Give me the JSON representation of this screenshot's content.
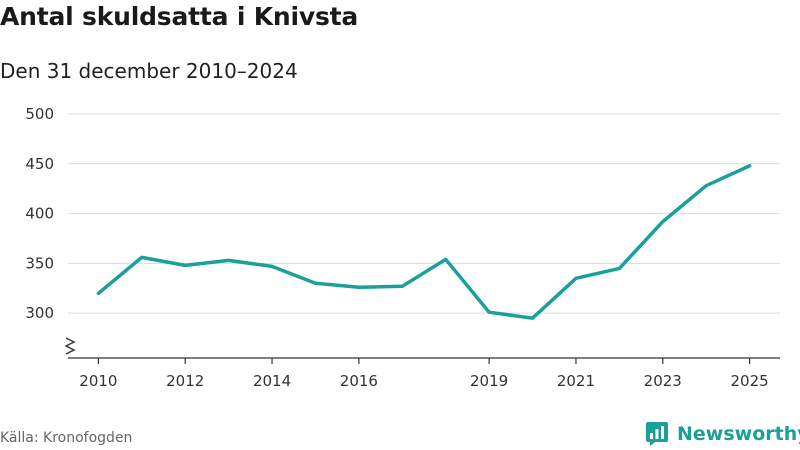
{
  "header": {
    "title": "Antal skuldsatta i Knivsta",
    "subtitle": "Den 31 december 2010–2024"
  },
  "footer": {
    "source": "Källa: Kronofogden",
    "brand": "Newsworthy"
  },
  "colors": {
    "line": "#1aa098",
    "grid": "#d9d9d9",
    "axis": "#333333",
    "brand": "#1aa098"
  },
  "icons": {
    "axis_break": "zigzag-axis-break-icon",
    "brand_logo": "newsworthy-logo-icon"
  },
  "chart_data": {
    "type": "line",
    "title": "Antal skuldsatta i Knivsta",
    "subtitle": "Den 31 december 2010–2024",
    "xlabel": "",
    "ylabel": "",
    "x": [
      2010,
      2011,
      2012,
      2013,
      2014,
      2015,
      2016,
      2017,
      2018,
      2019,
      2020,
      2021,
      2022,
      2023,
      2024,
      2025
    ],
    "series": [
      {
        "values": [
          320,
          356,
          348,
          353,
          347,
          330,
          326,
          327,
          354,
          301,
          295,
          335,
          345,
          392,
          428,
          448
        ]
      }
    ],
    "x_ticks": [
      2010,
      2012,
      2014,
      2016,
      2019,
      2021,
      2023,
      2025
    ],
    "y_ticks": [
      300,
      350,
      400,
      450,
      500
    ],
    "xlim": [
      2009.3,
      2025.7
    ],
    "ylim": [
      255,
      500
    ],
    "y_axis_break": true,
    "grid": "horizontal",
    "legend": "none"
  }
}
